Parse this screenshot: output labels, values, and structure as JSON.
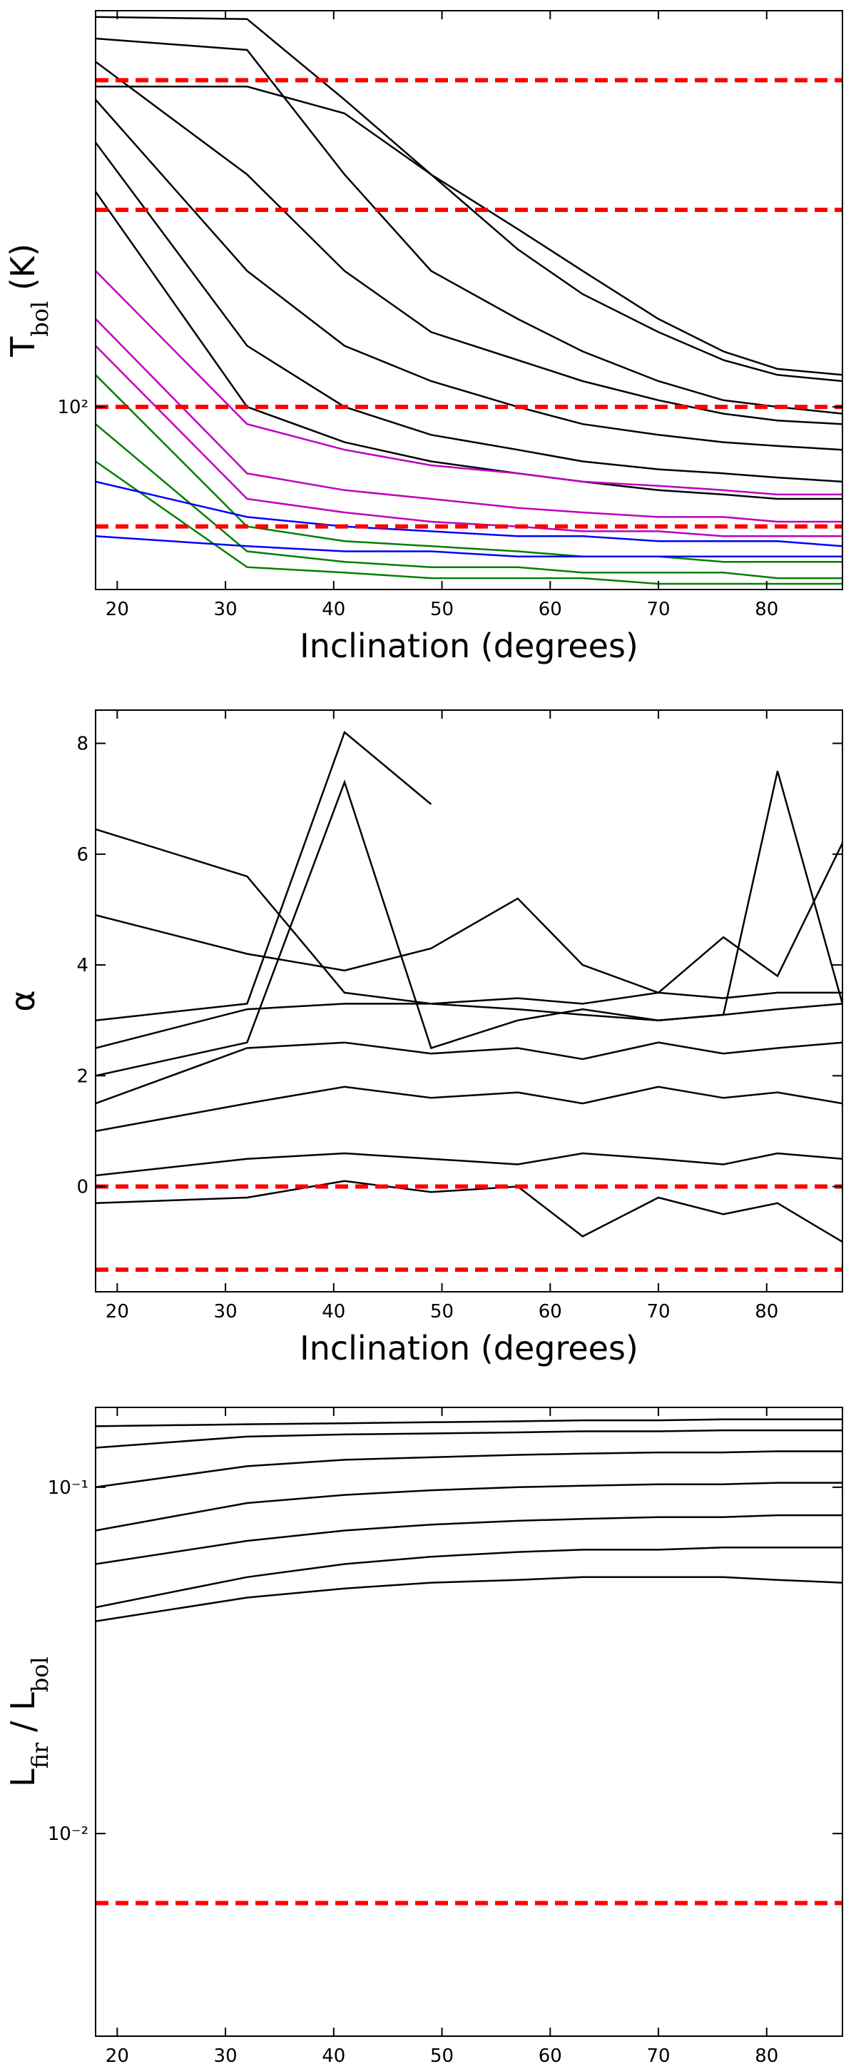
{
  "chart_data": [
    {
      "type": "line",
      "log_y": true,
      "grid": false,
      "ylabel": [
        {
          "text": "T"
        },
        {
          "text": "bol",
          "sub": true
        },
        {
          "text": " (K)"
        }
      ],
      "xlabel": "Inclination (degrees)",
      "x": [
        18,
        32,
        41,
        49,
        57,
        63,
        70,
        76,
        81,
        87
      ],
      "xlim": [
        18,
        87
      ],
      "xticks": [
        20,
        30,
        40,
        50,
        60,
        70,
        80
      ],
      "ylim": [
        58,
        326
      ],
      "yticks": [
        {
          "value": 100,
          "label": "10²"
        }
      ],
      "ref_lines": [
        70,
        100,
        180,
        265
      ],
      "ref_color": "#ff0000",
      "series": [
        {
          "color": "#000000",
          "values": [
            320,
            318,
            250,
            200,
            170,
            150,
            130,
            118,
            112,
            110
          ]
        },
        {
          "color": "#000000",
          "values": [
            300,
            290,
            200,
            150,
            130,
            118,
            108,
            102,
            100,
            98
          ]
        },
        {
          "color": "#000000",
          "values": [
            280,
            200,
            150,
            125,
            115,
            108,
            102,
            98,
            96,
            95
          ]
        },
        {
          "color": "#000000",
          "values": [
            250,
            150,
            120,
            108,
            100,
            95,
            92,
            90,
            89,
            88
          ]
        },
        {
          "color": "#000000",
          "values": [
            220,
            120,
            100,
            92,
            88,
            85,
            83,
            82,
            81,
            80
          ]
        },
        {
          "color": "#000000",
          "values": [
            190,
            100,
            90,
            85,
            82,
            80,
            78,
            77,
            76,
            76
          ]
        },
        {
          "color": "#000000",
          "values": [
            260,
            260,
            240,
            200,
            160,
            140,
            125,
            115,
            110,
            108
          ]
        },
        {
          "color": "#bf00bf",
          "values": [
            150,
            95,
            88,
            84,
            82,
            80,
            79,
            78,
            77,
            77
          ]
        },
        {
          "color": "#bf00bf",
          "values": [
            130,
            82,
            78,
            76,
            74,
            73,
            72,
            72,
            71,
            71
          ]
        },
        {
          "color": "#bf00bf",
          "values": [
            120,
            76,
            73,
            71,
            70,
            69,
            69,
            68,
            68,
            68
          ]
        },
        {
          "color": "#008000",
          "values": [
            110,
            70,
            67,
            66,
            65,
            64,
            64,
            63,
            63,
            63
          ]
        },
        {
          "color": "#008000",
          "values": [
            95,
            65,
            63,
            62,
            62,
            61,
            61,
            61,
            60,
            60
          ]
        },
        {
          "color": "#008000",
          "values": [
            85,
            62,
            61,
            60,
            60,
            60,
            59,
            59,
            59,
            59
          ]
        },
        {
          "color": "#0000ff",
          "values": [
            80,
            72,
            70,
            69,
            68,
            68,
            67,
            67,
            67,
            66
          ]
        },
        {
          "color": "#0000ff",
          "values": [
            68,
            66,
            65,
            65,
            64,
            64,
            64,
            64,
            64,
            64
          ]
        }
      ]
    },
    {
      "type": "line",
      "log_y": false,
      "grid": false,
      "ylabel": [
        {
          "text": "α"
        }
      ],
      "xlabel": "Inclination (degrees)",
      "x": [
        18,
        32,
        41,
        49,
        57,
        63,
        70,
        76,
        81,
        87
      ],
      "xlim": [
        18,
        87
      ],
      "xticks": [
        20,
        30,
        40,
        50,
        60,
        70,
        80
      ],
      "ylim": [
        -1.9,
        8.6
      ],
      "yticks": [
        0,
        2,
        4,
        6,
        8
      ],
      "ref_lines": [
        0,
        -1.5
      ],
      "ref_color": "#ff0000",
      "series": [
        {
          "color": "#000000",
          "values": [
            6.45,
            5.6,
            3.5,
            3.3,
            3.2,
            3.1,
            3.0,
            3.1,
            3.2,
            3.3
          ]
        },
        {
          "color": "#000000",
          "values": [
            4.9,
            4.2,
            3.9,
            4.3,
            5.2,
            4.0,
            3.5,
            4.5,
            3.8,
            6.2
          ]
        },
        {
          "color": "#000000",
          "values": [
            3.0,
            3.3,
            8.2,
            6.9,
            null,
            null,
            null,
            null,
            null,
            null
          ]
        },
        {
          "color": "#000000",
          "values": [
            2.0,
            2.6,
            7.3,
            2.5,
            3.0,
            3.2,
            3.0,
            3.1,
            7.5,
            3.3
          ]
        },
        {
          "color": "#000000",
          "values": [
            2.5,
            3.2,
            3.3,
            3.3,
            3.4,
            3.3,
            3.5,
            3.4,
            3.5,
            3.5
          ]
        },
        {
          "color": "#000000",
          "values": [
            1.5,
            2.5,
            2.6,
            2.4,
            2.5,
            2.3,
            2.6,
            2.4,
            2.5,
            2.6
          ]
        },
        {
          "color": "#000000",
          "values": [
            1.0,
            1.5,
            1.8,
            1.6,
            1.7,
            1.5,
            1.8,
            1.6,
            1.7,
            1.5
          ]
        },
        {
          "color": "#000000",
          "values": [
            0.2,
            0.5,
            0.6,
            0.5,
            0.4,
            0.6,
            0.5,
            0.4,
            0.6,
            0.5
          ]
        },
        {
          "color": "#000000",
          "values": [
            -0.3,
            -0.2,
            0.1,
            -0.1,
            0.0,
            -0.9,
            -0.2,
            -0.5,
            -0.3,
            -1.0
          ]
        }
      ]
    },
    {
      "type": "line",
      "log_y": true,
      "grid": false,
      "ylabel": [
        {
          "text": "L"
        },
        {
          "text": "fir",
          "sub": true
        },
        {
          "text": " / L"
        },
        {
          "text": "bol",
          "sub": true
        }
      ],
      "xlabel": "Inclination (degrees)",
      "x": [
        18,
        32,
        41,
        49,
        57,
        63,
        70,
        76,
        81,
        87
      ],
      "xlim": [
        18,
        87
      ],
      "xticks": [
        20,
        30,
        40,
        50,
        60,
        70,
        80
      ],
      "ylim": [
        0.0026,
        0.17
      ],
      "yticks": [
        {
          "value": 0.1,
          "label": "10⁻¹"
        },
        {
          "value": 0.01,
          "label": "10⁻²"
        }
      ],
      "ref_lines": [
        0.0063
      ],
      "ref_color": "#ff0000",
      "series": [
        {
          "color": "#000000",
          "values": [
            0.15,
            0.152,
            0.153,
            0.154,
            0.155,
            0.156,
            0.156,
            0.157,
            0.157,
            0.157
          ]
        },
        {
          "color": "#000000",
          "values": [
            0.13,
            0.14,
            0.142,
            0.143,
            0.144,
            0.145,
            0.145,
            0.146,
            0.146,
            0.146
          ]
        },
        {
          "color": "#000000",
          "values": [
            0.1,
            0.115,
            0.12,
            0.122,
            0.124,
            0.125,
            0.126,
            0.126,
            0.127,
            0.127
          ]
        },
        {
          "color": "#000000",
          "values": [
            0.075,
            0.09,
            0.095,
            0.098,
            0.1,
            0.101,
            0.102,
            0.102,
            0.103,
            0.103
          ]
        },
        {
          "color": "#000000",
          "values": [
            0.06,
            0.07,
            0.075,
            0.078,
            0.08,
            0.081,
            0.082,
            0.082,
            0.083,
            0.083
          ]
        },
        {
          "color": "#000000",
          "values": [
            0.045,
            0.055,
            0.06,
            0.063,
            0.065,
            0.066,
            0.066,
            0.067,
            0.067,
            0.067
          ]
        },
        {
          "color": "#000000",
          "values": [
            0.041,
            0.048,
            0.051,
            0.053,
            0.054,
            0.055,
            0.055,
            0.055,
            0.054,
            0.053
          ]
        }
      ]
    }
  ]
}
